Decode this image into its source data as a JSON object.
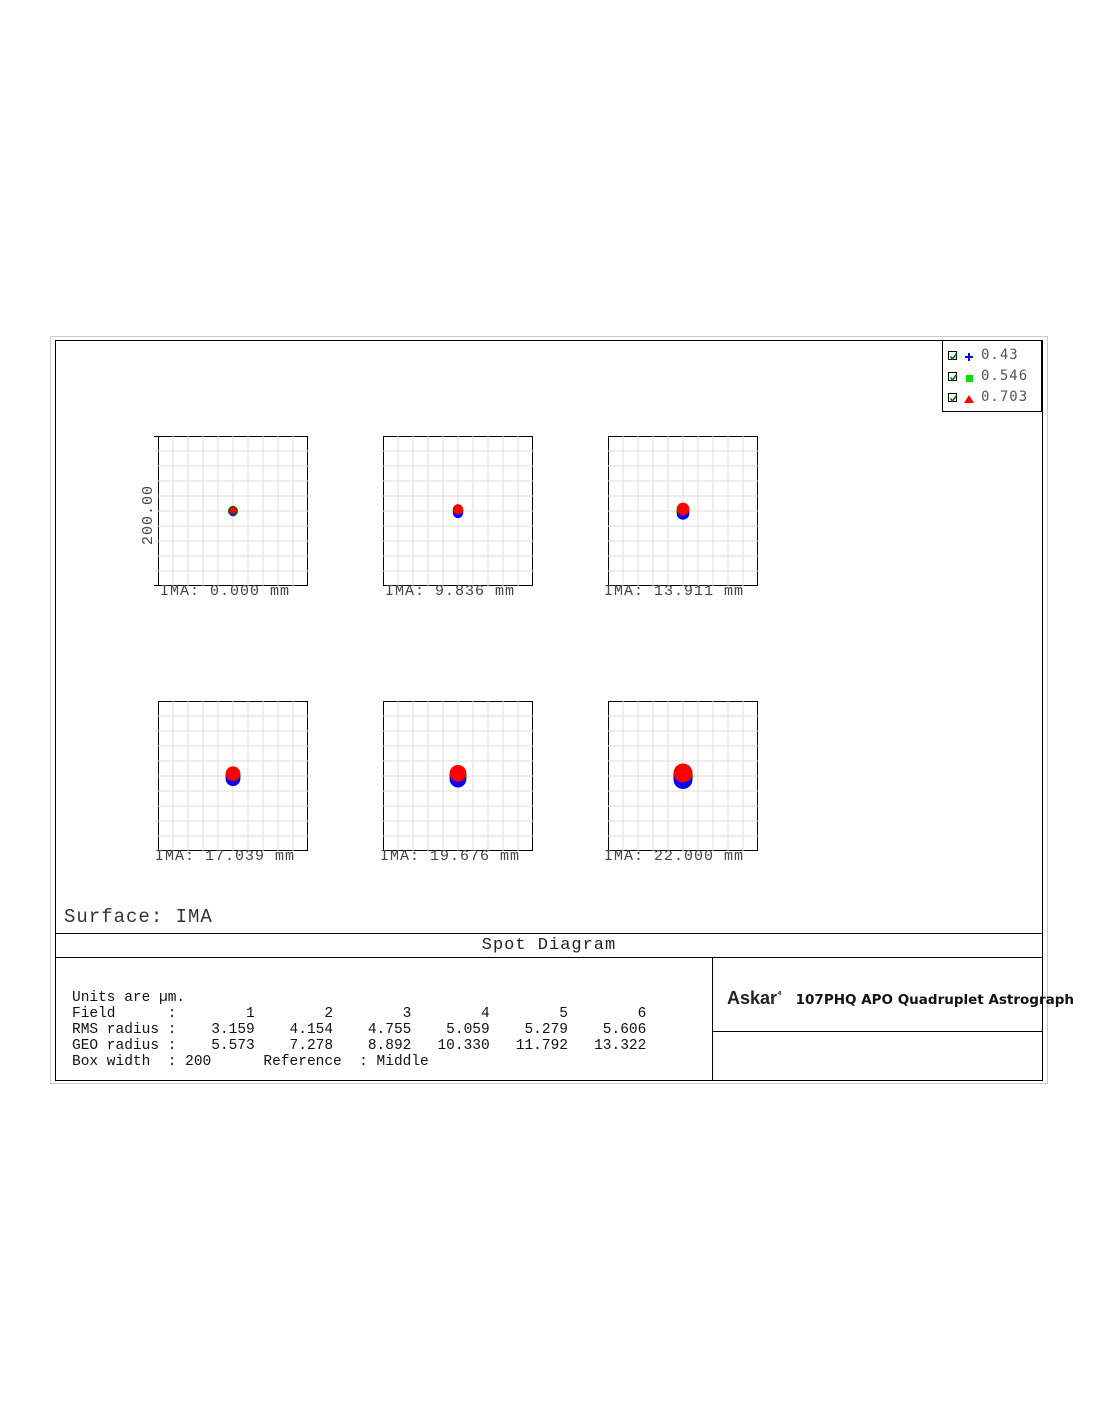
{
  "legend": {
    "items": [
      {
        "label": "0.43",
        "color": "#0000ff",
        "marker": "plus-icon"
      },
      {
        "label": "0.546",
        "color": "#00dd00",
        "marker": "square-icon"
      },
      {
        "label": "0.703",
        "color": "#ff0000",
        "marker": "triangle-icon"
      }
    ]
  },
  "axis": {
    "ylabel": "200.00"
  },
  "plots": [
    {
      "label": "IMA: 0.000 mm"
    },
    {
      "label": "IMA: 9.836 mm"
    },
    {
      "label": "IMA: 13.911 mm"
    },
    {
      "label": "IMA: 17.039 mm"
    },
    {
      "label": "IMA: 19.676 mm"
    },
    {
      "label": "IMA: 22.000 mm"
    }
  ],
  "surface": "Surface: IMA",
  "title": "Spot Diagram",
  "stats": {
    "units": "Units are µm.",
    "field_row": "Field      :        1        2        3        4        5        6",
    "rms_row": "RMS radius :    3.159    4.154    4.755    5.059    5.279    5.606",
    "geo_row": "GEO radius :    5.573    7.278    8.892   10.330   11.792   13.322",
    "box_row": "Box width  : 200      Reference  : Middle"
  },
  "brand": {
    "logo": "Askar",
    "mark": "⁴",
    "model": "107PHQ APO Quadruplet Astrograph"
  },
  "chart_data": {
    "type": "scatter",
    "title": "Spot Diagram",
    "box_width_um": 200,
    "reference": "Middle",
    "wavelengths_um": [
      0.43,
      0.546,
      0.703
    ],
    "fields_mm": [
      0.0,
      9.836,
      13.911,
      17.039,
      19.676,
      22.0
    ],
    "rms_radius_um": [
      3.159,
      4.154,
      4.755,
      5.059,
      5.279,
      5.606
    ],
    "geo_radius_um": [
      5.573,
      7.278,
      8.892,
      10.33,
      11.792,
      13.322
    ],
    "colors": {
      "0.43": "#0000ff",
      "0.546": "#00dd00",
      "0.703": "#ff0000"
    }
  }
}
